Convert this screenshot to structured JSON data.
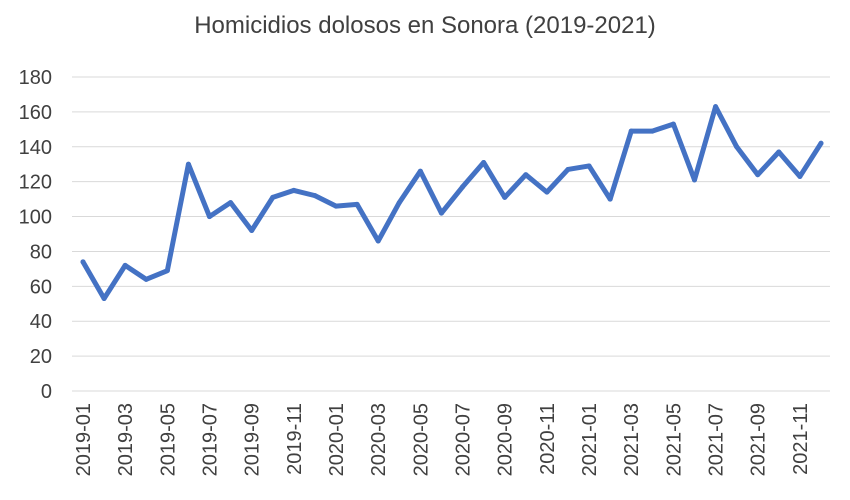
{
  "chart_data": {
    "type": "line",
    "title": "Homicidios dolosos en Sonora (2019-2021)",
    "xlabel": "",
    "ylabel": "",
    "ylim": [
      0,
      180
    ],
    "yticks": [
      "0",
      "20",
      "40",
      "60",
      "80",
      "100",
      "120",
      "140",
      "160",
      "180"
    ],
    "grid": true,
    "legend": "none",
    "x": [
      "2019-01",
      "2019-02",
      "2019-03",
      "2019-04",
      "2019-05",
      "2019-06",
      "2019-07",
      "2019-08",
      "2019-09",
      "2019-10",
      "2019-11",
      "2019-12",
      "2020-01",
      "2020-02",
      "2020-03",
      "2020-04",
      "2020-05",
      "2020-06",
      "2020-07",
      "2020-08",
      "2020-09",
      "2020-10",
      "2020-11",
      "2020-12",
      "2021-01",
      "2021-02",
      "2021-03",
      "2021-04",
      "2021-05",
      "2021-06",
      "2021-07",
      "2021-08",
      "2021-09",
      "2021-10",
      "2021-11",
      "2021-12"
    ],
    "xtick_labels": [
      "2019-01",
      "2019-03",
      "2019-05",
      "2019-07",
      "2019-09",
      "2019-11",
      "2020-01",
      "2020-03",
      "2020-05",
      "2020-07",
      "2020-09",
      "2020-11",
      "2021-01",
      "2021-03",
      "2021-05",
      "2021-07",
      "2021-09",
      "2021-11"
    ],
    "series": [
      {
        "values": [
          74,
          53,
          72,
          64,
          69,
          130,
          100,
          108,
          92,
          111,
          115,
          112,
          106,
          107,
          86,
          108,
          126,
          102,
          117,
          131,
          111,
          124,
          114,
          127,
          129,
          110,
          149,
          149,
          153,
          121,
          163,
          140,
          124,
          137,
          123,
          142
        ],
        "color": "#4472C4"
      }
    ],
    "gridline_color": "#d9d9d9",
    "text_color": "#404040"
  }
}
